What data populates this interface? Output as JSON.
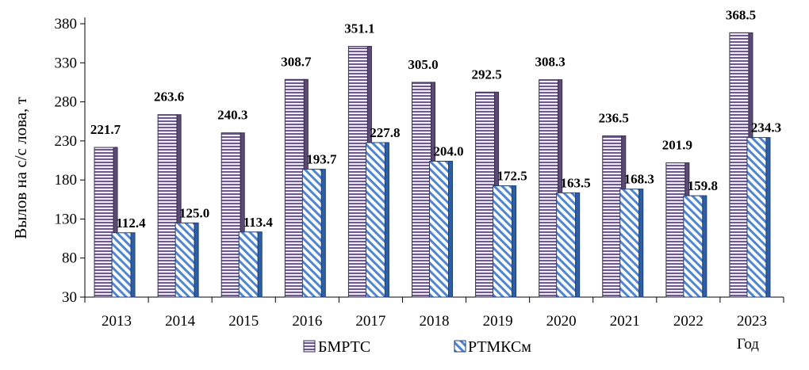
{
  "chart_data": {
    "type": "bar",
    "categories": [
      "2013",
      "2014",
      "2015",
      "2016",
      "2017",
      "2018",
      "2019",
      "2020",
      "2021",
      "2022",
      "2023"
    ],
    "series": [
      {
        "name": "БМРТС",
        "values": [
          221.7,
          263.6,
          240.3,
          308.7,
          351.1,
          305.0,
          292.5,
          308.3,
          236.5,
          201.9,
          368.5
        ],
        "labels": [
          "221.7",
          "263.6",
          "240.3",
          "308.7",
          "351.1",
          "305.0",
          "292.5",
          "308.3",
          "236.5",
          "201.9",
          "368.5"
        ],
        "color": "#b7a6c9",
        "pattern": "horizontal-stripes"
      },
      {
        "name": "РТМКСм",
        "values": [
          112.4,
          125.0,
          113.4,
          193.7,
          227.8,
          204.0,
          172.5,
          163.5,
          168.3,
          159.8,
          234.3
        ],
        "labels": [
          "112.4",
          "125.0",
          "113.4",
          "193.7",
          "227.8",
          "204.0",
          "172.5",
          "163.5",
          "168.3",
          "159.8",
          "234.3"
        ],
        "color": "#5b8fd6",
        "pattern": "diagonal-stripes"
      }
    ],
    "ylabel": "Вылов на с/с лова, т",
    "xlabel": "Год",
    "ylim": [
      30,
      380
    ],
    "yticks": [
      "30",
      "80",
      "130",
      "180",
      "230",
      "280",
      "330",
      "380"
    ],
    "legend": "bottom",
    "grid": false
  }
}
